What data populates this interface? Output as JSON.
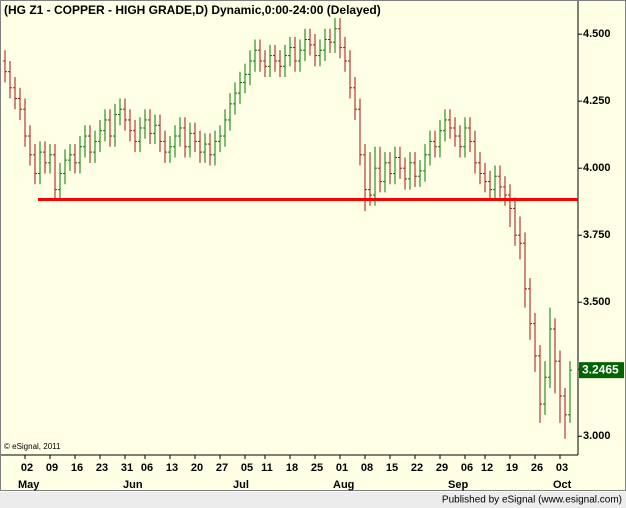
{
  "chart_data": {
    "type": "ohlc",
    "title": "(HG Z1 - COPPER - HIGH GRADE,D) Dynamic,0:00-24:00 (Delayed)",
    "copyright": "© eSignal, 2011",
    "footer": "Published by eSignal (www.esignal.com)",
    "up_color": "#007800",
    "down_color": "#a81010",
    "open": [
      4.4,
      4.36,
      4.3,
      4.26,
      4.22,
      4.12,
      4.05,
      3.98,
      4.06,
      4.02,
      4.05,
      3.92,
      3.98,
      4.03,
      4.05,
      4.02,
      4.08,
      4.12,
      4.06,
      4.1,
      4.14,
      4.18,
      4.12,
      4.2,
      4.22,
      4.18,
      4.14,
      4.1,
      4.15,
      4.18,
      4.13,
      4.16,
      4.1,
      4.06,
      4.08,
      4.12,
      4.15,
      4.08,
      4.13,
      4.1,
      4.06,
      4.09,
      4.05,
      4.1,
      4.12,
      4.18,
      4.24,
      4.28,
      4.32,
      4.35,
      4.4,
      4.44,
      4.4,
      4.38,
      4.42,
      4.4,
      4.38,
      4.42,
      4.45,
      4.4,
      4.44,
      4.48,
      4.46,
      4.42,
      4.44,
      4.48,
      4.47,
      4.52,
      4.45,
      4.4,
      4.3,
      4.22,
      4.05,
      3.92,
      3.9,
      4.0,
      3.95,
      4.02,
      3.98,
      4.04,
      4.0,
      3.96,
      4.02,
      3.97,
      3.99,
      4.05,
      4.1,
      4.08,
      4.14,
      4.18,
      4.15,
      4.12,
      4.08,
      4.15,
      4.1,
      4.02,
      3.98,
      3.95,
      3.92,
      3.97,
      3.93,
      3.9,
      3.85,
      3.75,
      3.72,
      3.55,
      3.42,
      3.3,
      3.12,
      3.22,
      3.4,
      3.28,
      3.15,
      3.08
    ],
    "high": [
      4.44,
      4.4,
      4.34,
      4.3,
      4.26,
      4.16,
      4.09,
      4.1,
      4.1,
      4.09,
      4.09,
      4.02,
      4.07,
      4.09,
      4.09,
      4.12,
      4.16,
      4.16,
      4.14,
      4.18,
      4.22,
      4.22,
      4.24,
      4.26,
      4.26,
      4.22,
      4.18,
      4.19,
      4.22,
      4.22,
      4.2,
      4.2,
      4.14,
      4.12,
      4.16,
      4.19,
      4.19,
      4.17,
      4.17,
      4.14,
      4.13,
      4.13,
      4.14,
      4.16,
      4.22,
      4.28,
      4.32,
      4.36,
      4.39,
      4.44,
      4.48,
      4.48,
      4.44,
      4.46,
      4.46,
      4.44,
      4.46,
      4.49,
      4.49,
      4.48,
      4.52,
      4.52,
      4.5,
      4.48,
      4.52,
      4.52,
      4.56,
      4.56,
      4.49,
      4.44,
      4.34,
      4.26,
      4.09,
      4.06,
      4.08,
      4.08,
      4.06,
      4.06,
      4.08,
      4.08,
      4.04,
      4.06,
      4.06,
      4.03,
      4.09,
      4.14,
      4.14,
      4.18,
      4.22,
      4.22,
      4.19,
      4.16,
      4.19,
      4.19,
      4.14,
      4.06,
      4.02,
      3.99,
      4.01,
      4.01,
      3.97,
      3.94,
      3.89,
      3.82,
      3.76,
      3.59,
      3.46,
      3.34,
      3.28,
      3.48,
      3.44,
      3.32,
      3.18,
      3.28
    ],
    "low": [
      4.32,
      4.26,
      4.22,
      4.18,
      4.08,
      4.01,
      3.94,
      3.94,
      3.98,
      3.98,
      3.88,
      3.88,
      3.94,
      3.99,
      3.98,
      3.98,
      4.04,
      4.02,
      4.02,
      4.06,
      4.1,
      4.08,
      4.08,
      4.16,
      4.14,
      4.1,
      4.06,
      4.06,
      4.11,
      4.09,
      4.09,
      4.06,
      4.02,
      4.02,
      4.04,
      4.08,
      4.04,
      4.04,
      4.06,
      4.02,
      4.02,
      4.01,
      4.01,
      4.06,
      4.08,
      4.14,
      4.2,
      4.24,
      4.28,
      4.31,
      4.36,
      4.36,
      4.34,
      4.34,
      4.36,
      4.34,
      4.34,
      4.38,
      4.36,
      4.36,
      4.4,
      4.42,
      4.38,
      4.38,
      4.4,
      4.43,
      4.43,
      4.41,
      4.36,
      4.26,
      4.18,
      4.01,
      3.84,
      3.86,
      3.86,
      3.91,
      3.91,
      3.94,
      3.94,
      3.96,
      3.92,
      3.92,
      3.93,
      3.93,
      3.95,
      4.01,
      4.04,
      4.04,
      4.1,
      4.11,
      4.08,
      4.04,
      4.04,
      4.06,
      3.98,
      3.94,
      3.91,
      3.88,
      3.88,
      3.89,
      3.86,
      3.78,
      3.71,
      3.66,
      3.48,
      3.36,
      3.24,
      3.05,
      3.08,
      3.18,
      3.16,
      3.05,
      2.99,
      3.05
    ],
    "close": [
      4.36,
      4.3,
      4.26,
      4.22,
      4.12,
      4.05,
      3.98,
      4.06,
      4.02,
      4.05,
      3.92,
      3.98,
      4.03,
      4.05,
      4.02,
      4.08,
      4.12,
      4.06,
      4.1,
      4.14,
      4.18,
      4.12,
      4.2,
      4.22,
      4.18,
      4.14,
      4.1,
      4.15,
      4.18,
      4.13,
      4.16,
      4.1,
      4.06,
      4.08,
      4.12,
      4.15,
      4.08,
      4.13,
      4.1,
      4.06,
      4.09,
      4.05,
      4.1,
      4.12,
      4.18,
      4.24,
      4.28,
      4.32,
      4.35,
      4.4,
      4.44,
      4.4,
      4.38,
      4.42,
      4.4,
      4.38,
      4.42,
      4.45,
      4.4,
      4.44,
      4.48,
      4.46,
      4.42,
      4.44,
      4.48,
      4.47,
      4.52,
      4.45,
      4.4,
      4.3,
      4.22,
      4.05,
      3.92,
      3.9,
      4.0,
      3.95,
      4.02,
      3.98,
      4.04,
      4.0,
      3.96,
      4.02,
      3.97,
      3.99,
      4.05,
      4.1,
      4.08,
      4.14,
      4.18,
      4.15,
      4.12,
      4.08,
      4.15,
      4.1,
      4.02,
      3.98,
      3.95,
      3.92,
      3.97,
      3.93,
      3.9,
      3.85,
      3.75,
      3.72,
      3.55,
      3.42,
      3.3,
      3.12,
      3.22,
      3.4,
      3.28,
      3.15,
      3.08,
      3.2465
    ],
    "xlim": [
      -0.6,
      114.6
    ],
    "ylim": [
      2.93,
      4.62
    ],
    "yticks": [
      {
        "value": 3,
        "label": "3.000"
      },
      {
        "value": 3.25,
        "label": "3.250"
      },
      {
        "value": 3.5,
        "label": "3.500"
      },
      {
        "value": 3.75,
        "label": "3.750"
      },
      {
        "value": 4,
        "label": "4.000"
      },
      {
        "value": 4.25,
        "label": "4.250"
      },
      {
        "value": 4.5,
        "label": "4.500"
      }
    ],
    "xticks": [
      {
        "value": 4,
        "label": "02"
      },
      {
        "value": 9,
        "label": "09"
      },
      {
        "value": 14,
        "label": "16"
      },
      {
        "value": 19,
        "label": "23"
      },
      {
        "value": 24,
        "label": "31"
      },
      {
        "value": 28,
        "label": "06"
      },
      {
        "value": 33,
        "label": "13"
      },
      {
        "value": 38,
        "label": "20"
      },
      {
        "value": 43,
        "label": "27"
      },
      {
        "value": 48,
        "label": "05"
      },
      {
        "value": 52,
        "label": "11"
      },
      {
        "value": 57,
        "label": "18"
      },
      {
        "value": 62,
        "label": "25"
      },
      {
        "value": 67,
        "label": "01"
      },
      {
        "value": 72,
        "label": "08"
      },
      {
        "value": 77,
        "label": "15"
      },
      {
        "value": 82,
        "label": "22"
      },
      {
        "value": 87,
        "label": "29"
      },
      {
        "value": 92,
        "label": "06"
      },
      {
        "value": 96,
        "label": "12"
      },
      {
        "value": 101,
        "label": "19"
      },
      {
        "value": 106,
        "label": "26"
      },
      {
        "value": 111,
        "label": "03"
      }
    ],
    "month_ticks": [
      {
        "value": 4,
        "label": "May"
      },
      {
        "value": 25,
        "label": "Jun"
      },
      {
        "value": 47,
        "label": "Jul"
      },
      {
        "value": 67,
        "label": "Aug"
      },
      {
        "value": 90,
        "label": "Sep"
      },
      {
        "value": 111,
        "label": "Oct"
      }
    ],
    "support_line": {
      "value": 3.883,
      "from": 6.6,
      "color": "#ff0000"
    },
    "last_price_color": "#006400"
  }
}
